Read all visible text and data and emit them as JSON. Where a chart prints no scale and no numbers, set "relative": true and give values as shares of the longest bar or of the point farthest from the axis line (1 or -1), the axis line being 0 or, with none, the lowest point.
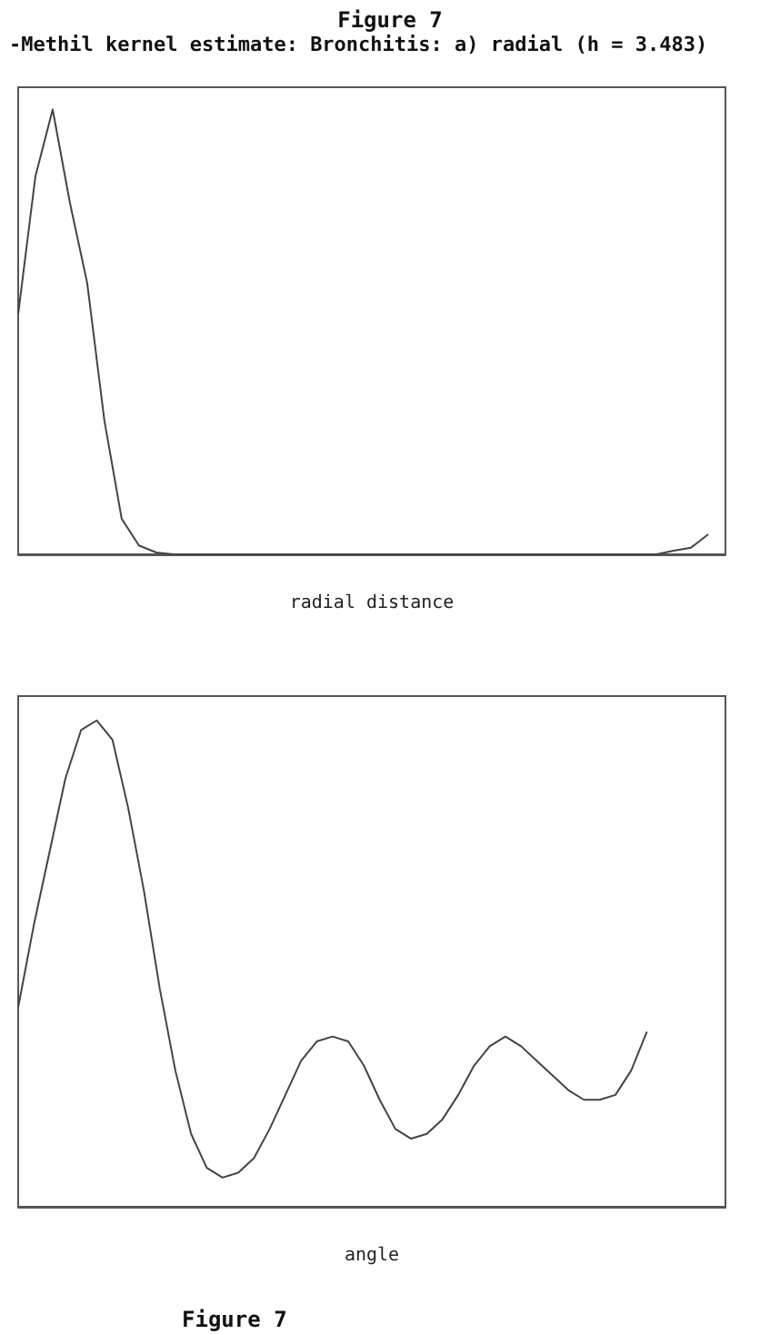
{
  "chart_data": [
    {
      "type": "line",
      "title": "Figure 7",
      "subtitle": "-Methil kernel estimate: Bronchitis: a) radial (h = 3.483)",
      "xlabel": "radial distance",
      "relative": true,
      "color": "#444444",
      "marker": "none",
      "grid": false,
      "categories": [
        null,
        null,
        null,
        null,
        null,
        null,
        null,
        null,
        null,
        null,
        null,
        null,
        null,
        null,
        null,
        null,
        null,
        null,
        null,
        null,
        null,
        null,
        null,
        null,
        null,
        null,
        null,
        null,
        null,
        null,
        null,
        null,
        null,
        null,
        null,
        null,
        null,
        null,
        null,
        null,
        null,
        null
      ],
      "values": [
        0.54,
        0.85,
        1,
        0.79,
        0.61,
        0.3,
        0.08,
        0.02,
        0.004,
        0,
        0,
        0,
        0,
        0,
        0,
        0,
        0,
        0,
        0,
        0,
        0,
        0,
        0,
        0,
        0,
        0,
        0,
        0,
        0,
        0,
        0,
        0,
        0,
        0,
        0,
        0,
        0,
        0,
        0.008,
        0.015,
        0.045,
        null
      ]
    },
    {
      "type": "line",
      "xlabel": "angle",
      "annotations": [
        "Figure 7"
      ],
      "relative": true,
      "color": "#444444",
      "marker": "none",
      "grid": false,
      "categories": [
        null,
        null,
        null,
        null,
        null,
        null,
        null,
        null,
        null,
        null,
        null,
        null,
        null,
        null,
        null,
        null,
        null,
        null,
        null,
        null,
        null,
        null,
        null,
        null,
        null,
        null,
        null,
        null,
        null,
        null,
        null,
        null,
        null,
        null,
        null,
        null,
        null,
        null,
        null,
        null,
        null,
        null,
        null,
        null,
        null,
        null
      ],
      "values": [
        0.41,
        0.58,
        0.73,
        0.88,
        0.98,
        1,
        0.96,
        0.82,
        0.65,
        0.45,
        0.28,
        0.15,
        0.08,
        0.06,
        0.07,
        0.1,
        0.16,
        0.23,
        0.3,
        0.34,
        0.35,
        0.34,
        0.29,
        0.22,
        0.16,
        0.14,
        0.15,
        0.18,
        0.23,
        0.29,
        0.33,
        0.35,
        0.33,
        0.3,
        0.27,
        0.24,
        0.22,
        0.22,
        0.23,
        0.28,
        0.36,
        null,
        null,
        null,
        null,
        null
      ]
    }
  ]
}
